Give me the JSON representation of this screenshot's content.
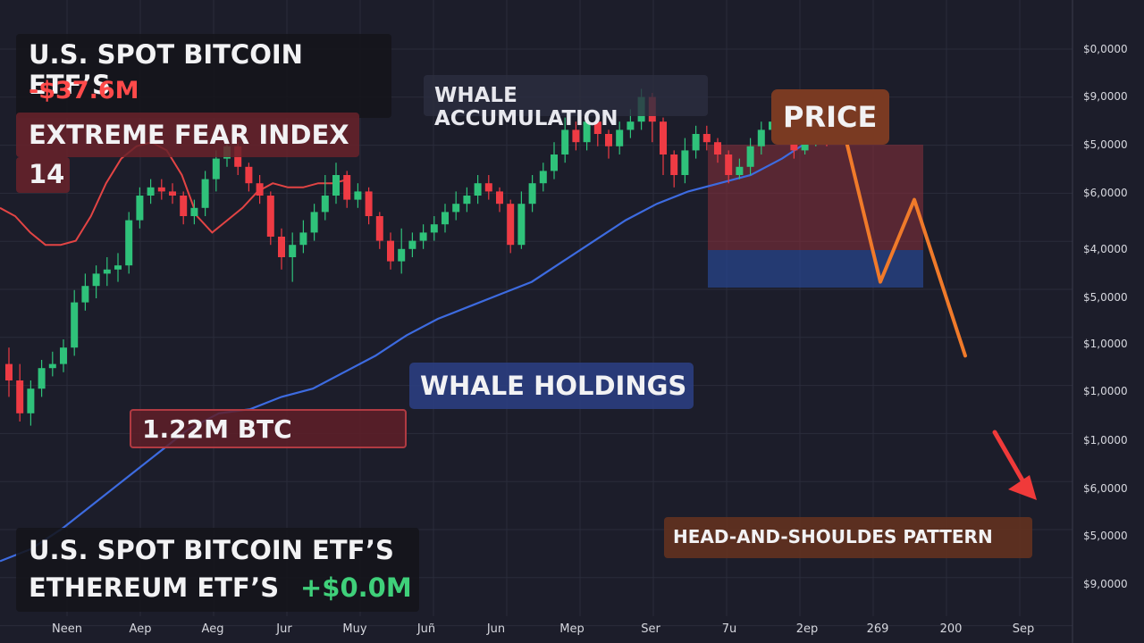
{
  "colors": {
    "background": "#1c1d2a",
    "bull": "#2fc27a",
    "bear": "#ee3b44",
    "fear_line": "#e24444",
    "whale_line": "#3d6be0",
    "projection": "#f07a2a",
    "arrow": "#f03a3a"
  },
  "panels": {
    "etf_flow": {
      "title": "U.S. SPOT BITCOIN ETF’S",
      "value": "-$37.6M"
    },
    "fear_index": {
      "title": "EXTREME FEAR INDEX",
      "value": "14"
    },
    "whale_accumulation": {
      "label": "WHALE ACCUMULATION"
    },
    "price": {
      "label": "PRICE"
    },
    "whale_holdings": {
      "label": "WHALE HOLDINGS"
    },
    "btc_amount": {
      "label": "1.22M BTC"
    },
    "pattern": {
      "label": "HEAD-AND-SHOULDES PATTERN"
    },
    "etf_bottom": {
      "line1": "U.S. SPOT BITCOIN ETF’S",
      "line2": "ETHEREUM ETF’S",
      "value": "+$0.0M"
    }
  },
  "chart_data": {
    "type": "line",
    "x_tick_labels": [
      "Neen",
      "Aep",
      "Aeg",
      "Jur",
      "Muy",
      "Juñ",
      "Jun",
      "Mep",
      "Ser",
      "7u",
      "2ep",
      "269",
      "200",
      "Sep"
    ],
    "y_tick_labels": [
      "$0,0000",
      "$9,0000",
      "$5,0000",
      "$6,0000",
      "$4,0000",
      "$5,0000",
      "$1,0000",
      "$1,0000",
      "$1,0000",
      "$6,0000",
      "$5,0000",
      "$9,0000"
    ],
    "ylim": [
      0,
      100
    ],
    "grid": true,
    "candles": [
      {
        "o": 44,
        "c": 40,
        "h": 48,
        "l": 36
      },
      {
        "o": 40,
        "c": 32,
        "h": 44,
        "l": 30
      },
      {
        "o": 32,
        "c": 38,
        "h": 40,
        "l": 29
      },
      {
        "o": 38,
        "c": 43,
        "h": 45,
        "l": 36
      },
      {
        "o": 43,
        "c": 44,
        "h": 47,
        "l": 41
      },
      {
        "o": 44,
        "c": 48,
        "h": 50,
        "l": 42
      },
      {
        "o": 48,
        "c": 59,
        "h": 62,
        "l": 46
      },
      {
        "o": 59,
        "c": 63,
        "h": 66,
        "l": 57
      },
      {
        "o": 63,
        "c": 66,
        "h": 68,
        "l": 60
      },
      {
        "o": 66,
        "c": 67,
        "h": 70,
        "l": 63
      },
      {
        "o": 67,
        "c": 68,
        "h": 71,
        "l": 64
      },
      {
        "o": 68,
        "c": 79,
        "h": 81,
        "l": 66
      },
      {
        "o": 79,
        "c": 85,
        "h": 87,
        "l": 77
      },
      {
        "o": 85,
        "c": 87,
        "h": 89,
        "l": 83
      },
      {
        "o": 87,
        "c": 86,
        "h": 89,
        "l": 84
      },
      {
        "o": 86,
        "c": 85,
        "h": 88,
        "l": 83
      },
      {
        "o": 85,
        "c": 80,
        "h": 86,
        "l": 78
      },
      {
        "o": 80,
        "c": 82,
        "h": 84,
        "l": 78
      },
      {
        "o": 82,
        "c": 89,
        "h": 91,
        "l": 80
      },
      {
        "o": 89,
        "c": 94,
        "h": 96,
        "l": 86
      },
      {
        "o": 94,
        "c": 97,
        "h": 99,
        "l": 92
      },
      {
        "o": 97,
        "c": 92,
        "h": 98,
        "l": 90
      },
      {
        "o": 92,
        "c": 88,
        "h": 93,
        "l": 86
      },
      {
        "o": 88,
        "c": 85,
        "h": 90,
        "l": 83
      },
      {
        "o": 85,
        "c": 75,
        "h": 86,
        "l": 73
      },
      {
        "o": 75,
        "c": 70,
        "h": 77,
        "l": 67
      },
      {
        "o": 70,
        "c": 73,
        "h": 76,
        "l": 64
      },
      {
        "o": 73,
        "c": 76,
        "h": 79,
        "l": 71
      },
      {
        "o": 76,
        "c": 81,
        "h": 83,
        "l": 74
      },
      {
        "o": 81,
        "c": 85,
        "h": 90,
        "l": 79
      },
      {
        "o": 85,
        "c": 90,
        "h": 93,
        "l": 83
      },
      {
        "o": 90,
        "c": 84,
        "h": 91,
        "l": 82
      },
      {
        "o": 84,
        "c": 86,
        "h": 88,
        "l": 82
      },
      {
        "o": 86,
        "c": 80,
        "h": 87,
        "l": 78
      },
      {
        "o": 80,
        "c": 74,
        "h": 81,
        "l": 72
      },
      {
        "o": 74,
        "c": 69,
        "h": 76,
        "l": 67
      },
      {
        "o": 69,
        "c": 72,
        "h": 77,
        "l": 66
      },
      {
        "o": 72,
        "c": 74,
        "h": 76,
        "l": 70
      },
      {
        "o": 74,
        "c": 76,
        "h": 78,
        "l": 72
      },
      {
        "o": 76,
        "c": 78,
        "h": 80,
        "l": 74
      },
      {
        "o": 78,
        "c": 81,
        "h": 83,
        "l": 76
      },
      {
        "o": 81,
        "c": 83,
        "h": 86,
        "l": 79
      },
      {
        "o": 83,
        "c": 85,
        "h": 87,
        "l": 81
      },
      {
        "o": 85,
        "c": 88,
        "h": 90,
        "l": 83
      },
      {
        "o": 88,
        "c": 86,
        "h": 90,
        "l": 84
      },
      {
        "o": 86,
        "c": 83,
        "h": 87,
        "l": 81
      },
      {
        "o": 83,
        "c": 73,
        "h": 84,
        "l": 71
      },
      {
        "o": 73,
        "c": 83,
        "h": 86,
        "l": 72
      },
      {
        "o": 83,
        "c": 88,
        "h": 90,
        "l": 81
      },
      {
        "o": 88,
        "c": 91,
        "h": 93,
        "l": 86
      },
      {
        "o": 91,
        "c": 95,
        "h": 98,
        "l": 89
      },
      {
        "o": 95,
        "c": 101,
        "h": 104,
        "l": 93
      },
      {
        "o": 101,
        "c": 98,
        "h": 103,
        "l": 96
      },
      {
        "o": 98,
        "c": 103,
        "h": 105,
        "l": 96
      },
      {
        "o": 103,
        "c": 100,
        "h": 105,
        "l": 97
      },
      {
        "o": 100,
        "c": 97,
        "h": 101,
        "l": 94
      },
      {
        "o": 97,
        "c": 101,
        "h": 103,
        "l": 95
      },
      {
        "o": 101,
        "c": 103,
        "h": 106,
        "l": 99
      },
      {
        "o": 103,
        "c": 109,
        "h": 111,
        "l": 101
      },
      {
        "o": 109,
        "c": 103,
        "h": 110,
        "l": 98
      },
      {
        "o": 103,
        "c": 95,
        "h": 104,
        "l": 90
      },
      {
        "o": 95,
        "c": 90,
        "h": 96,
        "l": 87
      },
      {
        "o": 90,
        "c": 96,
        "h": 99,
        "l": 88
      },
      {
        "o": 96,
        "c": 100,
        "h": 102,
        "l": 94
      },
      {
        "o": 100,
        "c": 98,
        "h": 102,
        "l": 96
      },
      {
        "o": 98,
        "c": 95,
        "h": 99,
        "l": 93
      },
      {
        "o": 95,
        "c": 90,
        "h": 96,
        "l": 88
      },
      {
        "o": 90,
        "c": 92,
        "h": 94,
        "l": 89
      },
      {
        "o": 92,
        "c": 97,
        "h": 99,
        "l": 90
      },
      {
        "o": 97,
        "c": 101,
        "h": 103,
        "l": 95
      },
      {
        "o": 101,
        "c": 103,
        "h": 105,
        "l": 99
      },
      {
        "o": 103,
        "c": 101,
        "h": 104,
        "l": 99
      },
      {
        "o": 101,
        "c": 96,
        "h": 102,
        "l": 94
      },
      {
        "o": 96,
        "c": 99,
        "h": 101,
        "l": 95
      },
      {
        "o": 99,
        "c": 100,
        "h": 101,
        "l": 97
      },
      {
        "o": 100,
        "c": 99,
        "h": 101,
        "l": 97
      }
    ],
    "series": [
      {
        "values": [
          82,
          80,
          76,
          73,
          73,
          74,
          80,
          88,
          94,
          97,
          98,
          96,
          90,
          80,
          76,
          79,
          82,
          86,
          88,
          87,
          87,
          88,
          88,
          89
        ]
      },
      {
        "values": [
          -4,
          -1,
          4,
          10,
          16,
          22,
          28,
          32,
          33,
          36,
          38,
          42,
          46,
          51,
          55,
          58,
          61,
          64,
          69,
          74,
          79,
          83,
          86,
          88,
          90,
          94,
          99,
          103
        ]
      },
      {
        "values": [
          100,
          64,
          84,
          46
        ]
      }
    ]
  }
}
